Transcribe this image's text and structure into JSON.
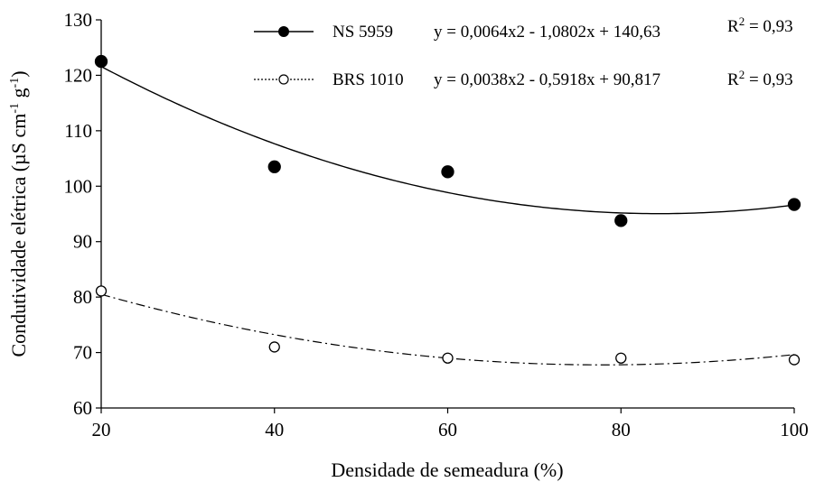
{
  "chart_data": {
    "type": "scatter",
    "xlabel": "Densidade de semeadura (%)",
    "ylabel": {
      "main": "Condutividade elétrica (µS cm",
      "sup1": "-1",
      "mid": " g",
      "sup2": "-1",
      "close": ")"
    },
    "xlim": [
      20,
      100
    ],
    "ylim": [
      60,
      130
    ],
    "xticks": [
      "20",
      "40",
      "60",
      "80",
      "100"
    ],
    "yticks": [
      "60",
      "70",
      "80",
      "90",
      "100",
      "110",
      "120",
      "130"
    ],
    "grid": false,
    "legend_position": "top",
    "series": [
      {
        "name": "NS 5959",
        "marker": "filled-circle",
        "line_style": "solid",
        "x": [
          20,
          40,
          60,
          80,
          100
        ],
        "y": [
          122.5,
          103.5,
          102.6,
          93.8,
          96.7
        ],
        "equation": "y = 0,0064x2 - 1,0802x + 140,63",
        "fit": {
          "a": 0.0064,
          "b": -1.0802,
          "c": 140.63
        },
        "r2": {
          "prefix": "R",
          "sup": "2",
          "suffix": " = 0,93"
        }
      },
      {
        "name": "BRS 1010",
        "marker": "open-circle",
        "line_style": "dash-dot",
        "x": [
          20,
          40,
          60,
          80,
          100
        ],
        "y": [
          81.1,
          71.0,
          69.0,
          69.0,
          68.7
        ],
        "equation": "y = 0,0038x2 - 0,5918x + 90,817",
        "fit": {
          "a": 0.0038,
          "b": -0.5918,
          "c": 90.817
        },
        "r2": {
          "prefix": "R",
          "sup": "2",
          "suffix": " = 0,93"
        }
      }
    ]
  }
}
